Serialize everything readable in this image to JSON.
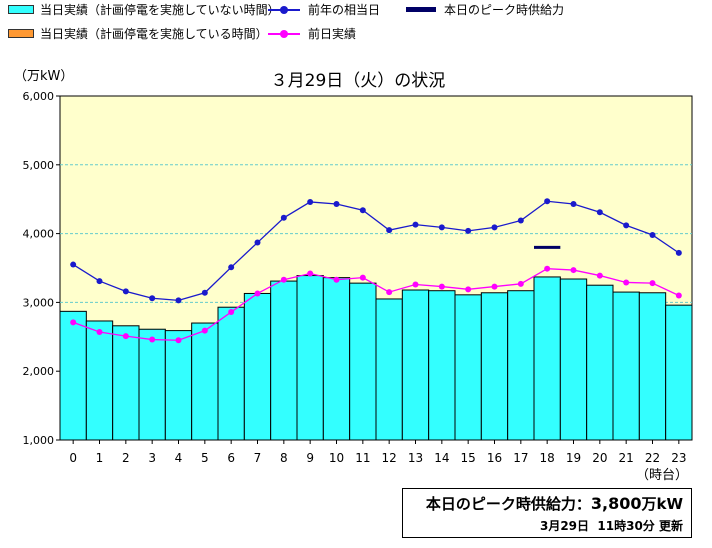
{
  "legend": {
    "items": [
      {
        "label": "当日実績（計画停電を実施していない時間）",
        "kind": "box",
        "color": "#33ffff"
      },
      {
        "label": "当日実績（計画停電を実施している時間）",
        "kind": "box",
        "color": "#ff9933"
      },
      {
        "label": "前年の相当日",
        "kind": "line",
        "color": "#1a1acc"
      },
      {
        "label": "前日実績",
        "kind": "line",
        "color": "#ff00ff"
      },
      {
        "label": "本日のピーク時供給力",
        "kind": "bar",
        "color": "#000066"
      }
    ]
  },
  "colors": {
    "plot_bg": "#ffffcc",
    "bar_fill": "#33ffff",
    "grid": "#66cccc",
    "prev_year": "#1a1acc",
    "prev_day": "#ff00ff",
    "peak_supply": "#000066"
  },
  "chart_data": {
    "type": "bar",
    "title": "３月29日（火）の状況",
    "ylabel": "（万kW）",
    "xlabel": "（時台）",
    "ylim": [
      1000,
      6000
    ],
    "yticks": [
      "1,000",
      "2,000",
      "3,000",
      "4,000",
      "5,000",
      "6,000"
    ],
    "ytick_values": [
      1000,
      2000,
      3000,
      4000,
      5000,
      6000
    ],
    "categories": [
      "0",
      "1",
      "2",
      "3",
      "4",
      "5",
      "6",
      "7",
      "8",
      "9",
      "10",
      "11",
      "12",
      "13",
      "14",
      "15",
      "16",
      "17",
      "18",
      "19",
      "20",
      "21",
      "22",
      "23"
    ],
    "series": [
      {
        "name": "当日実績（計画停電を実施していない時間）",
        "type": "bar",
        "values": [
          2870,
          2730,
          2660,
          2610,
          2590,
          2700,
          2930,
          3130,
          3310,
          3390,
          3360,
          3280,
          3050,
          3180,
          3170,
          3110,
          3140,
          3170,
          3370,
          3340,
          3250,
          3150,
          3140,
          2960
        ]
      },
      {
        "name": "前年の相当日",
        "type": "line",
        "values": [
          3550,
          3310,
          3160,
          3060,
          3030,
          3140,
          3510,
          3870,
          4230,
          4460,
          4430,
          4340,
          4050,
          4130,
          4090,
          4040,
          4090,
          4190,
          4470,
          4430,
          4310,
          4120,
          3980,
          3720
        ]
      },
      {
        "name": "前日実績",
        "type": "line",
        "values": [
          2710,
          2570,
          2510,
          2460,
          2450,
          2590,
          2860,
          3130,
          3330,
          3420,
          3330,
          3360,
          3150,
          3260,
          3230,
          3190,
          3230,
          3270,
          3490,
          3470,
          3390,
          3290,
          3280,
          3100
        ]
      },
      {
        "name": "本日のピーク時供給力",
        "type": "segment",
        "value": 3800,
        "x_start": 17.5,
        "x_end": 18.5
      }
    ]
  },
  "footer": {
    "peak_label": "本日のピーク時供給力：",
    "peak_value": "3,800",
    "peak_unit": "万kW",
    "update_date": "3月29日",
    "update_time": "11時30分",
    "update_suffix": "更新"
  }
}
